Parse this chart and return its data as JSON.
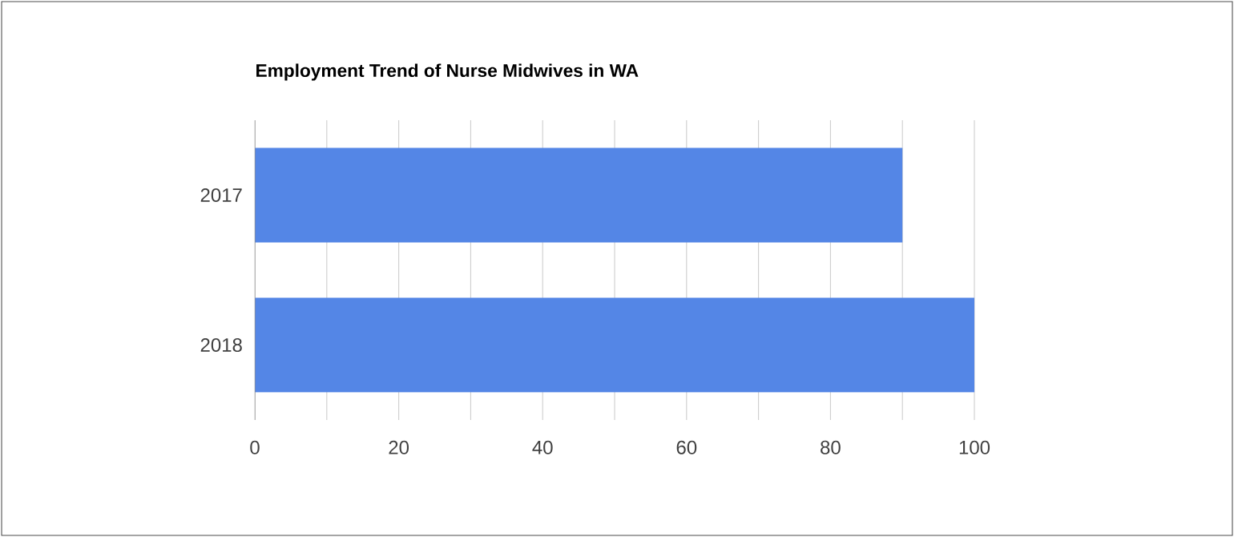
{
  "chart_data": {
    "type": "bar",
    "orientation": "horizontal",
    "title": "Employment Trend of Nurse Midwives in WA",
    "categories": [
      "2017",
      "2018"
    ],
    "values": [
      90,
      100
    ],
    "color": "#5486e6",
    "xlim": [
      0,
      100
    ],
    "xticks": [
      0,
      {
        "value": 10,
        "label": null
      },
      20,
      {
        "value": 30,
        "label": null
      },
      40,
      {
        "value": 50,
        "label": null
      },
      60,
      {
        "value": 70,
        "label": null
      },
      80,
      {
        "value": 90,
        "label": null
      },
      100
    ],
    "grid": "x"
  }
}
